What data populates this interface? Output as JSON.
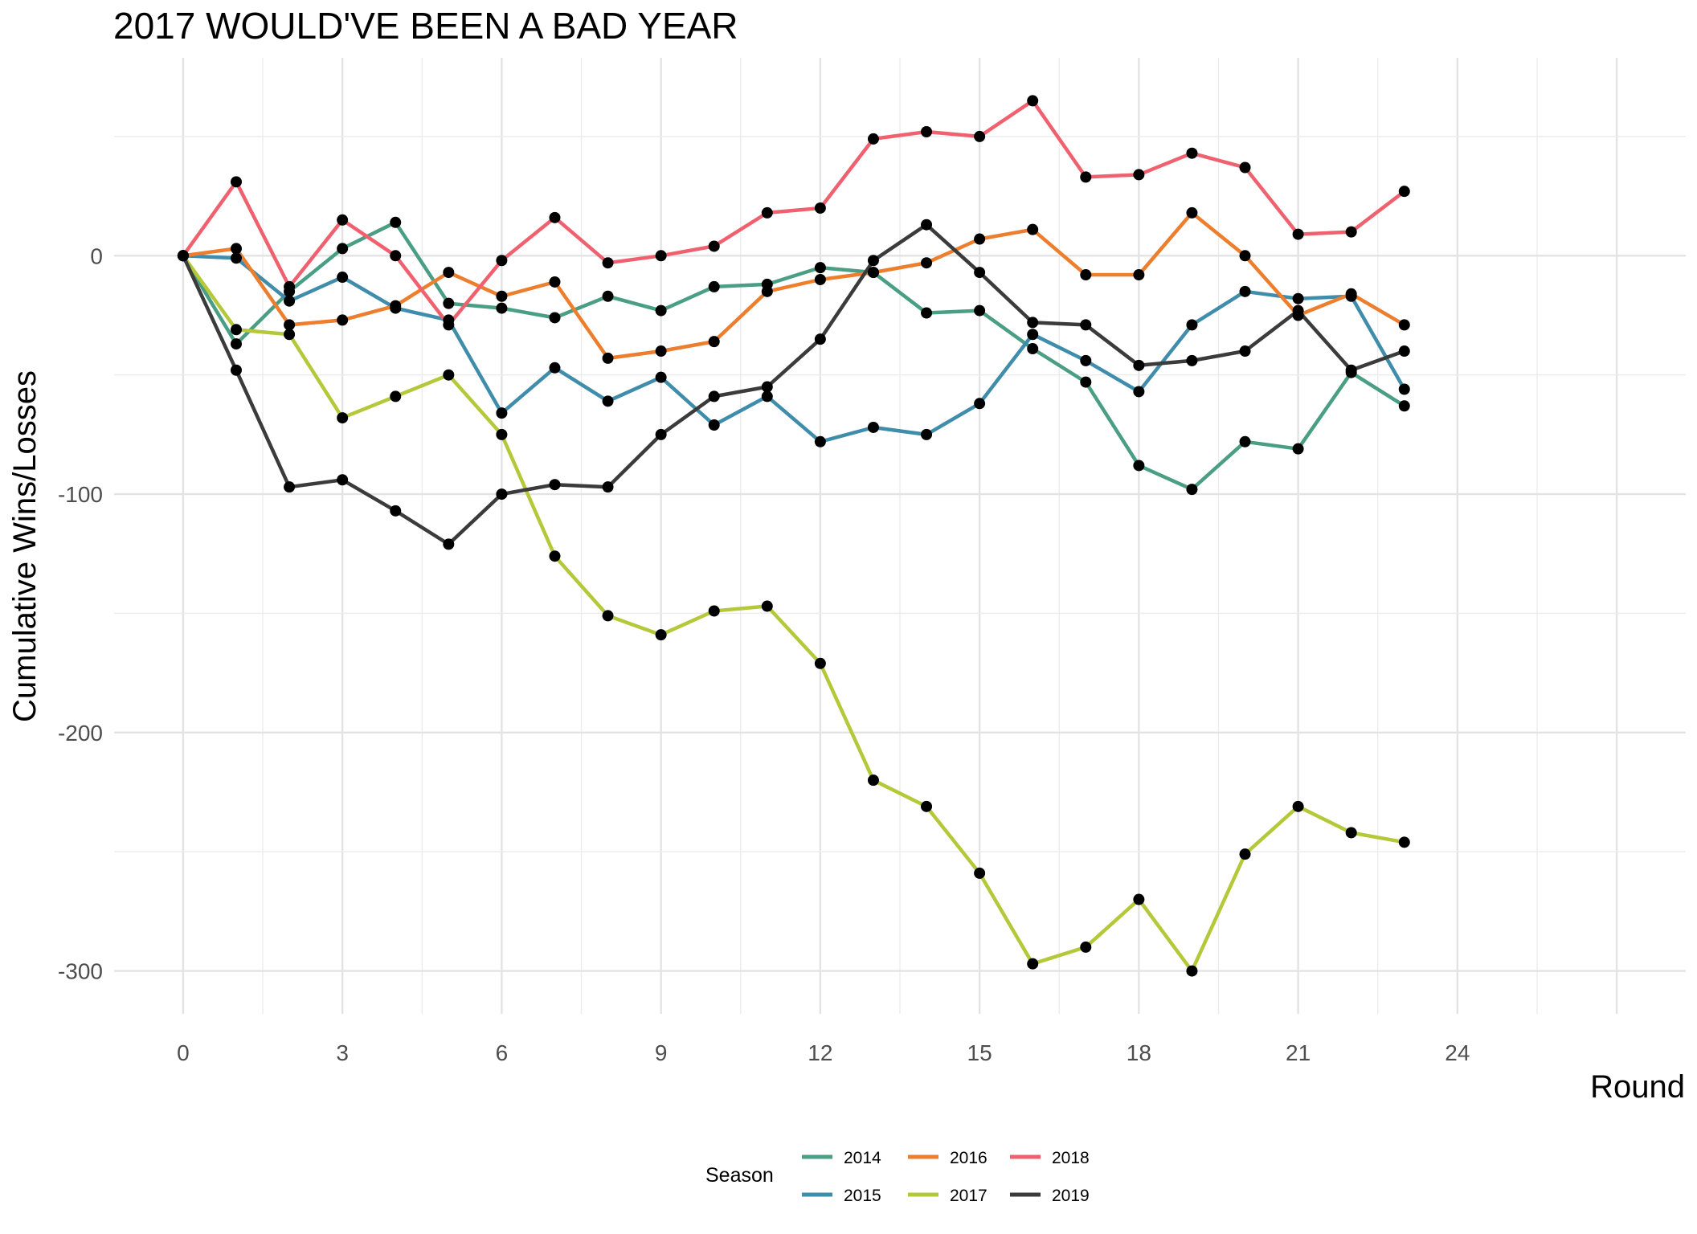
{
  "chart_data": {
    "type": "line",
    "title": "2017 WOULD'VE BEEN A BAD YEAR",
    "xlabel": "Round",
    "ylabel": "Cumulative Wins/Losses",
    "xlim": [
      -1.3,
      28.3
    ],
    "ylim": [
      -318,
      83
    ],
    "x_ticks": [
      0,
      3,
      6,
      9,
      12,
      15,
      18,
      21,
      24
    ],
    "y_ticks": [
      -300,
      -200,
      -100,
      0
    ],
    "grid": true,
    "legend": {
      "title": "Season",
      "position": "bottom"
    },
    "x": [
      0,
      1,
      2,
      3,
      4,
      5,
      6,
      7,
      8,
      9,
      10,
      11,
      12,
      13,
      14,
      15,
      16,
      17,
      18,
      19,
      20,
      21,
      22,
      23
    ],
    "series": [
      {
        "name": "2014",
        "color": "#4a9e84",
        "values": [
          0,
          -37,
          -15,
          3,
          14,
          -20,
          -22,
          -26,
          -17,
          -23,
          -13,
          -12,
          -5,
          -7,
          -24,
          -23,
          -39,
          -53,
          -88,
          -98,
          -78,
          -81,
          -49,
          -63
        ]
      },
      {
        "name": "2015",
        "color": "#3f8cab",
        "values": [
          0,
          -1,
          -19,
          -9,
          -22,
          -27,
          -66,
          -47,
          -61,
          -51,
          -71,
          -59,
          -78,
          -72,
          -75,
          -62,
          -33,
          -44,
          -57,
          -29,
          -15,
          -18,
          -17,
          -56
        ]
      },
      {
        "name": "2016",
        "color": "#ec7e2e",
        "values": [
          0,
          3,
          -29,
          -27,
          -21,
          -7,
          -17,
          -11,
          -43,
          -40,
          -36,
          -15,
          -10,
          -7,
          -3,
          7,
          11,
          -8,
          -8,
          18,
          0,
          -25,
          -16,
          -29
        ]
      },
      {
        "name": "2017",
        "color": "#b5c83a",
        "values": [
          0,
          -31,
          -33,
          -68,
          -59,
          -50,
          -75,
          -126,
          -151,
          -159,
          -149,
          -147,
          -171,
          -220,
          -231,
          -259,
          -297,
          -290,
          -270,
          -300,
          -251,
          -231,
          -242,
          -246
        ]
      },
      {
        "name": "2018",
        "color": "#f0616f",
        "values": [
          0,
          31,
          -13,
          15,
          0,
          -29,
          -2,
          16,
          -3,
          0,
          4,
          18,
          20,
          49,
          52,
          50,
          65,
          33,
          34,
          43,
          37,
          9,
          10,
          27
        ]
      },
      {
        "name": "2019",
        "color": "#3b3b3b",
        "values": [
          0,
          -48,
          -97,
          -94,
          -107,
          -121,
          -100,
          -96,
          -97,
          -75,
          -59,
          -55,
          -35,
          -2,
          13,
          -7,
          -28,
          -29,
          -46,
          -44,
          -40,
          -23,
          -48,
          -40
        ]
      }
    ]
  }
}
